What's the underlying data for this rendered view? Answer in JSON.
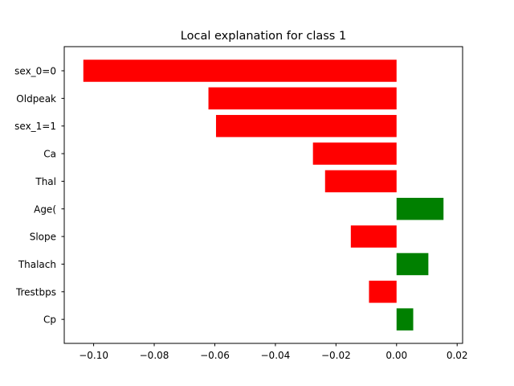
{
  "chart_data": {
    "type": "bar",
    "orientation": "horizontal",
    "title": "Local explanation for class 1",
    "xlabel": "",
    "ylabel": "",
    "categories": [
      "sex_0=0",
      "Oldpeak",
      "sex_1=1",
      "Ca",
      "Thal",
      "Age(",
      "Slope",
      "Thalach",
      "Trestbps",
      "Cp"
    ],
    "values": [
      -0.1034,
      -0.0621,
      -0.0596,
      -0.0276,
      -0.0236,
      0.0155,
      -0.0151,
      0.0105,
      -0.0091,
      0.0055
    ],
    "xlim": [
      -0.1097,
      0.0218
    ],
    "xticks": [
      -0.1,
      -0.08,
      -0.06,
      -0.04,
      -0.02,
      0.0,
      0.02
    ],
    "xtick_labels": [
      "−0.10",
      "−0.08",
      "−0.06",
      "−0.04",
      "−0.02",
      "0.00",
      "0.02"
    ],
    "grid": false,
    "colors": {
      "negative": "#ff0000",
      "positive": "#008000"
    }
  }
}
